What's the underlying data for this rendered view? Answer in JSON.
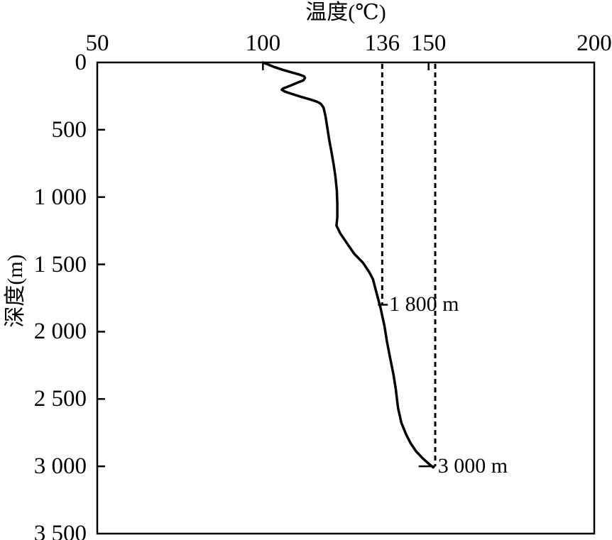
{
  "figure": {
    "background": "#ffffff",
    "line_color": "#000000"
  },
  "chart_data": {
    "type": "line",
    "title": "温度(℃)",
    "ylabel": "深度(m)",
    "x_axis_position": "top",
    "y_axis_direction": "depth-increases-downward",
    "grid": false,
    "legend": "none",
    "x_axis": {
      "min": 50,
      "max": 200,
      "ticks": [
        {
          "value": 50,
          "label": "50",
          "tick_mark": false
        },
        {
          "value": 100,
          "label": "100",
          "tick_mark": true
        },
        {
          "value": 136,
          "label": "136",
          "tick_mark": false
        },
        {
          "value": 150,
          "label": "150",
          "tick_mark": true
        },
        {
          "value": 200,
          "label": "200",
          "tick_mark": false
        }
      ]
    },
    "y_axis": {
      "min": 0,
      "max": 3500,
      "ticks": [
        {
          "value": 0,
          "label": "0",
          "tick_mark": false
        },
        {
          "value": 500,
          "label": "500",
          "tick_mark": true
        },
        {
          "value": 1000,
          "label": "1 000",
          "tick_mark": true
        },
        {
          "value": 1500,
          "label": "1 500",
          "tick_mark": true
        },
        {
          "value": 2000,
          "label": "2 000",
          "tick_mark": true
        },
        {
          "value": 2500,
          "label": "2 500",
          "tick_mark": true
        },
        {
          "value": 3000,
          "label": "3 000",
          "tick_mark": true
        },
        {
          "value": 3500,
          "label": "3 500",
          "tick_mark": false
        }
      ]
    },
    "series": [
      {
        "name": "temperature-depth-curve",
        "style": "solid",
        "points": [
          [
            100.0,
            0
          ],
          [
            101.5,
            15
          ],
          [
            103.5,
            35
          ],
          [
            106.0,
            55
          ],
          [
            108.5,
            73
          ],
          [
            111.0,
            90
          ],
          [
            112.4,
            103
          ],
          [
            112.7,
            115
          ],
          [
            112.2,
            133
          ],
          [
            110.3,
            152
          ],
          [
            108.0,
            175
          ],
          [
            106.1,
            193
          ],
          [
            105.7,
            203
          ],
          [
            106.5,
            215
          ],
          [
            108.5,
            232
          ],
          [
            111.5,
            255
          ],
          [
            114.3,
            275
          ],
          [
            116.5,
            293
          ],
          [
            117.5,
            308
          ],
          [
            118.3,
            335
          ],
          [
            118.9,
            400
          ],
          [
            119.4,
            480
          ],
          [
            120.0,
            575
          ],
          [
            120.7,
            665
          ],
          [
            121.3,
            750
          ],
          [
            121.9,
            850
          ],
          [
            122.3,
            950
          ],
          [
            122.45,
            1050
          ],
          [
            122.45,
            1150
          ],
          [
            122.2,
            1212
          ],
          [
            123.3,
            1268
          ],
          [
            125.0,
            1330
          ],
          [
            127.5,
            1420
          ],
          [
            130.2,
            1488
          ],
          [
            132.1,
            1558
          ],
          [
            133.2,
            1610
          ],
          [
            134.1,
            1695
          ],
          [
            134.9,
            1768
          ],
          [
            135.6,
            1835
          ],
          [
            136.2,
            1905
          ],
          [
            136.7,
            1960
          ],
          [
            137.4,
            2070
          ],
          [
            138.4,
            2195
          ],
          [
            139.4,
            2318
          ],
          [
            140.1,
            2428
          ],
          [
            140.5,
            2510
          ],
          [
            140.8,
            2568
          ],
          [
            141.8,
            2678
          ],
          [
            143.3,
            2768
          ],
          [
            144.6,
            2830
          ],
          [
            146.2,
            2888
          ],
          [
            148.2,
            2940
          ],
          [
            150.1,
            2982
          ],
          [
            151.4,
            3008
          ]
        ]
      }
    ],
    "reference_lines": [
      {
        "name": "136-degree-line",
        "temp": 136,
        "from_depth": 0,
        "to_depth": 1800,
        "style": "dashed"
      },
      {
        "name": "152-degree-line",
        "temp": 152,
        "from_depth": 0,
        "to_depth": 3000,
        "style": "dashed"
      }
    ],
    "annotations": [
      {
        "label": "1 800 m",
        "depth": 1800,
        "leader_from_temp": 134.7,
        "leader_to_temp": 137.7,
        "label_temp": 138.1
      },
      {
        "label": "3 000 m",
        "depth": 3000,
        "leader_from_temp": 147.0,
        "leader_to_temp": 152.0,
        "label_temp": 152.8
      }
    ]
  }
}
